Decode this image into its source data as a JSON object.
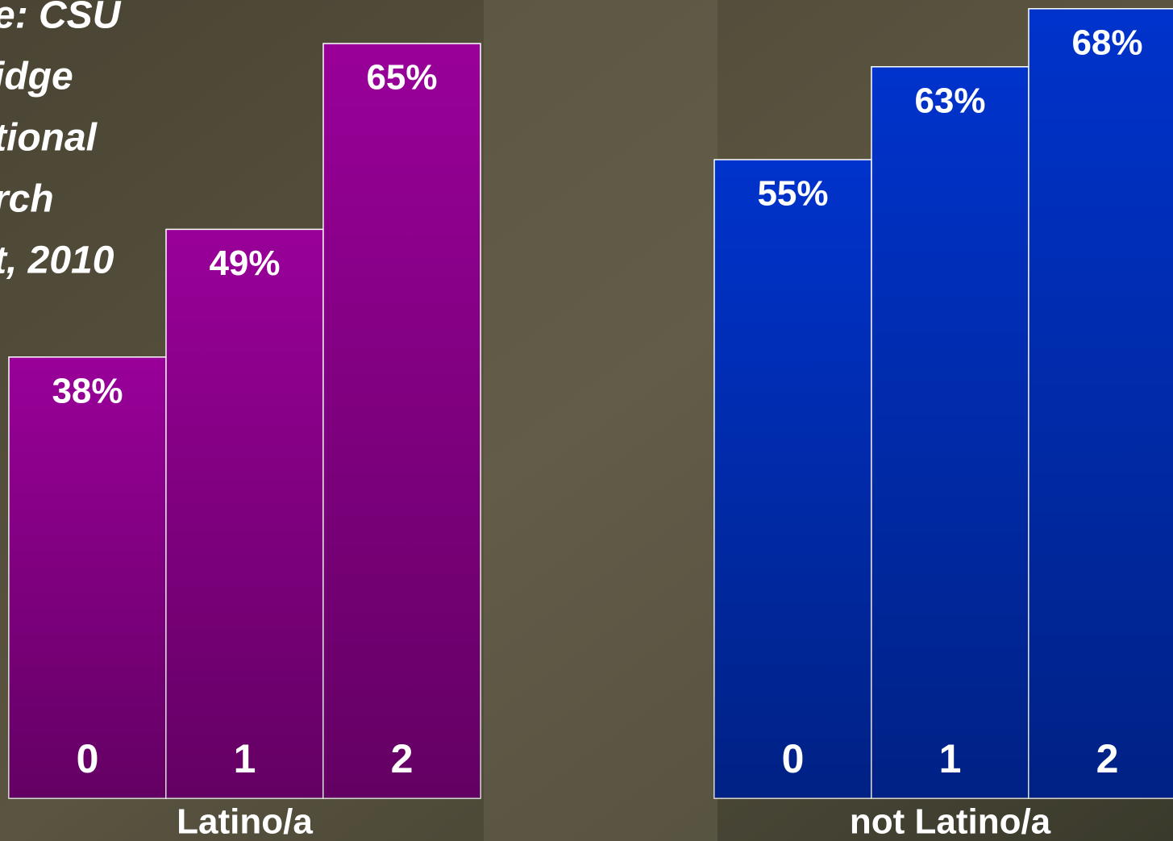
{
  "chart_data": [
    {
      "type": "bar",
      "annotation": [
        "e:  CSU",
        "idge",
        "tional",
        "rch",
        "t, 2010"
      ],
      "categories": [
        "0",
        "1",
        "2"
      ],
      "values": [
        38,
        49,
        65
      ],
      "value_labels": [
        "38%",
        "49%",
        "65%"
      ],
      "color": "#990099",
      "xlabel": "Latino/a"
    },
    {
      "type": "bar",
      "categories": [
        "0",
        "1",
        "2"
      ],
      "values": [
        55,
        63,
        68
      ],
      "value_labels": [
        "55%",
        "63%",
        "68%"
      ],
      "color": "#0033cc",
      "xlabel": "not Latino/a"
    }
  ]
}
